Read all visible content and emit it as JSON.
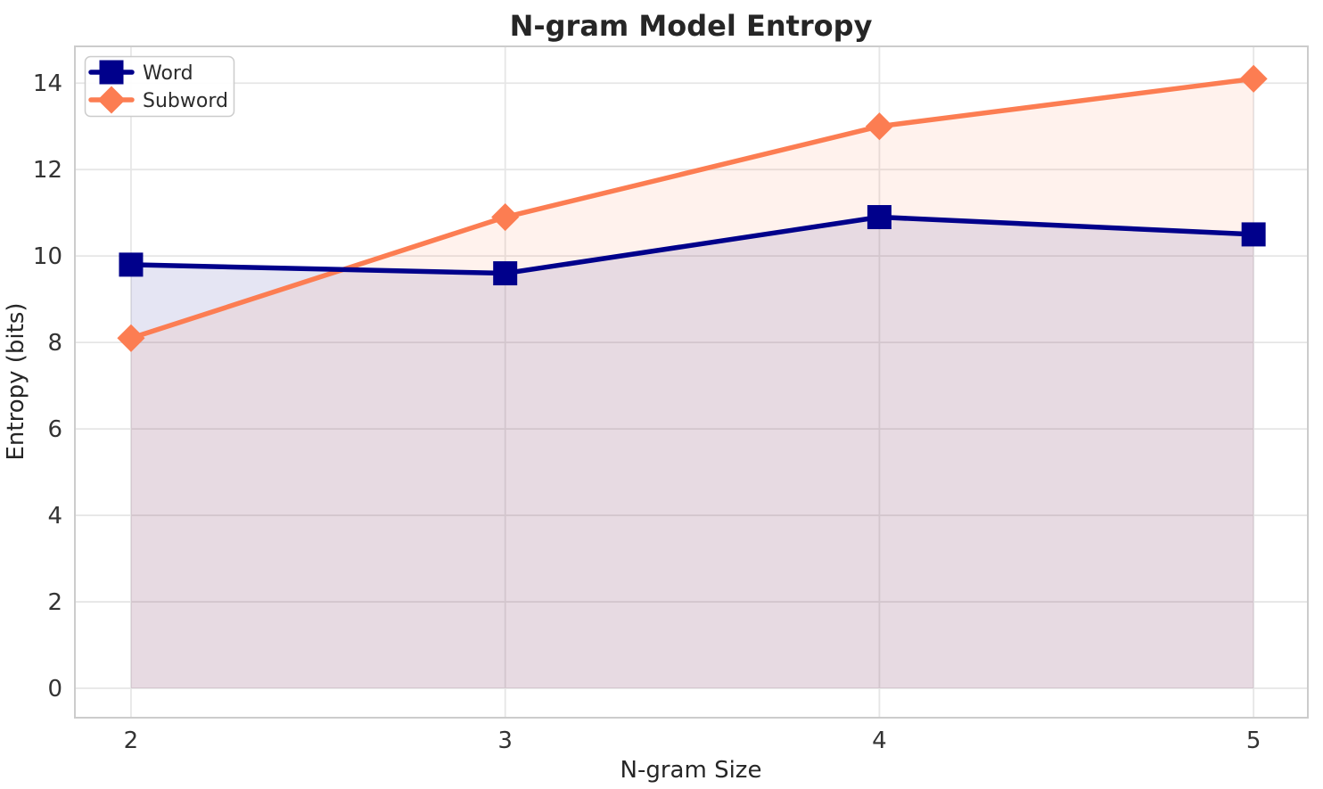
{
  "chart_data": {
    "type": "line",
    "title": "N-gram Model Entropy",
    "xlabel": "N-gram Size",
    "ylabel": "Entropy (bits)",
    "x": [
      2,
      3,
      4,
      5
    ],
    "series": [
      {
        "name": "Word",
        "marker": "square",
        "color": "#00008B",
        "values": [
          9.8,
          9.6,
          10.9,
          10.5
        ]
      },
      {
        "name": "Subword",
        "marker": "diamond",
        "color": "#FC7D52",
        "values": [
          8.1,
          10.9,
          13.0,
          14.1
        ]
      }
    ],
    "fill_to_zero": true,
    "fill_alpha": 0.1,
    "xticks": [
      "2",
      "3",
      "4",
      "5"
    ],
    "yticks": [
      "0",
      "2",
      "4",
      "6",
      "8",
      "10",
      "12",
      "14"
    ],
    "xlim": [
      1.85,
      5.145
    ],
    "ylim": [
      -0.68,
      14.85
    ],
    "grid": true,
    "legend_position": "upper left"
  },
  "style": {
    "background": "#ffffff",
    "grid_color": "#e6e6e6",
    "spine_color": "#cccccc",
    "text_color": "#333333"
  }
}
